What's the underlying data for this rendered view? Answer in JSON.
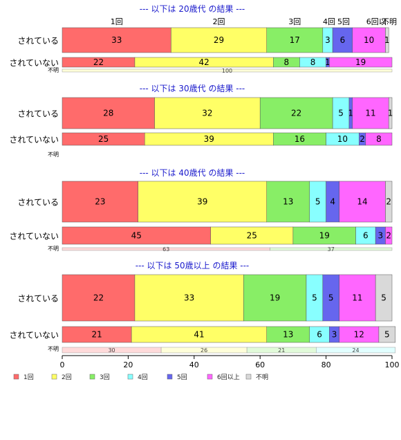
{
  "chart_data": {
    "type": "bar",
    "orientation": "horizontal",
    "stacked": true,
    "categories": [
      "1回",
      "2回",
      "3回",
      "4回",
      "5回",
      "6回以上",
      "不明"
    ],
    "top_category_labels": [
      "1回",
      "2回",
      "3回",
      "4回",
      "5回",
      "6回以.",
      "不明"
    ],
    "colors": {
      "1回": "#ff6b6b",
      "2回": "#ffff66",
      "3回": "#88ee66",
      "4回": "#88ffff",
      "5回": "#6666ee",
      "6回以上": "#ff66ff",
      "不明": "#d9d9d9"
    },
    "xlim": [
      0,
      100
    ],
    "xticks": [
      0,
      20,
      40,
      60,
      80,
      100
    ],
    "grid": false,
    "legend_position": "bottom",
    "panels": [
      {
        "title": "--- 以下は 20歳代 の結果 ---",
        "rows": [
          {
            "label": "されている",
            "values": [
              33,
              29,
              17,
              3,
              6,
              10,
              1
            ]
          },
          {
            "label": "されていない",
            "values": [
              22,
              42,
              8,
              8,
              1,
              19,
              0
            ]
          },
          {
            "label": "不明",
            "values": [
              0,
              100,
              0,
              0,
              0,
              0,
              0
            ]
          }
        ]
      },
      {
        "title": "--- 以下は 30歳代 の結果 ---",
        "rows": [
          {
            "label": "されている",
            "values": [
              28,
              32,
              22,
              5,
              1,
              11,
              1
            ]
          },
          {
            "label": "されていない",
            "values": [
              25,
              39,
              16,
              10,
              2,
              8,
              0
            ]
          },
          {
            "label": "不明",
            "values": []
          }
        ]
      },
      {
        "title": "--- 以下は 40歳代 の結果 ---",
        "rows": [
          {
            "label": "されている",
            "values": [
              23,
              39,
              13,
              5,
              4,
              14,
              2
            ]
          },
          {
            "label": "されていない",
            "values": [
              45,
              25,
              19,
              6,
              3,
              2,
              0
            ]
          },
          {
            "label": "不明",
            "values": [
              63,
              0,
              37,
              0,
              0,
              0,
              0
            ]
          }
        ]
      },
      {
        "title": "--- 以下は 50歳以上 の結果 ---",
        "rows": [
          {
            "label": "されている",
            "values": [
              22,
              33,
              19,
              5,
              5,
              11,
              5
            ]
          },
          {
            "label": "されていない",
            "values": [
              21,
              41,
              13,
              6,
              3,
              12,
              5
            ]
          },
          {
            "label": "不明",
            "values": [
              30,
              26,
              21,
              24,
              0,
              0,
              0
            ]
          }
        ]
      }
    ]
  }
}
